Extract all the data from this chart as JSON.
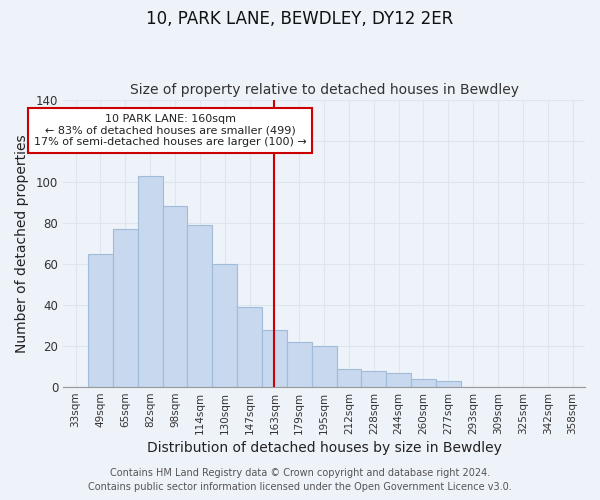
{
  "title": "10, PARK LANE, BEWDLEY, DY12 2ER",
  "subtitle": "Size of property relative to detached houses in Bewdley",
  "xlabel": "Distribution of detached houses by size in Bewdley",
  "ylabel": "Number of detached properties",
  "bar_labels": [
    "33sqm",
    "49sqm",
    "65sqm",
    "82sqm",
    "98sqm",
    "114sqm",
    "130sqm",
    "147sqm",
    "163sqm",
    "179sqm",
    "195sqm",
    "212sqm",
    "228sqm",
    "244sqm",
    "260sqm",
    "277sqm",
    "293sqm",
    "309sqm",
    "325sqm",
    "342sqm",
    "358sqm"
  ],
  "bar_values": [
    0,
    65,
    77,
    103,
    88,
    79,
    60,
    39,
    28,
    22,
    20,
    9,
    8,
    7,
    4,
    3,
    0,
    0,
    0,
    0,
    0
  ],
  "bar_color": "#c8d8ee",
  "bar_edge_color": "#a0bcd8",
  "vline_index": 8,
  "vline_color": "#cc0000",
  "annotation_title": "10 PARK LANE: 160sqm",
  "annotation_line1": "← 83% of detached houses are smaller (499)",
  "annotation_line2": "17% of semi-detached houses are larger (100) →",
  "annotation_box_color": "#ffffff",
  "annotation_box_edge": "#cc0000",
  "ylim": [
    0,
    140
  ],
  "yticks": [
    0,
    20,
    40,
    60,
    80,
    100,
    120,
    140
  ],
  "footer1": "Contains HM Land Registry data © Crown copyright and database right 2024.",
  "footer2": "Contains public sector information licensed under the Open Government Licence v3.0.",
  "background_color": "#eef2f9",
  "grid_color": "#dde5f0",
  "title_fontsize": 12,
  "subtitle_fontsize": 10,
  "axis_label_fontsize": 10,
  "tick_fontsize": 7.5,
  "annotation_fontsize": 8,
  "footer_fontsize": 7
}
